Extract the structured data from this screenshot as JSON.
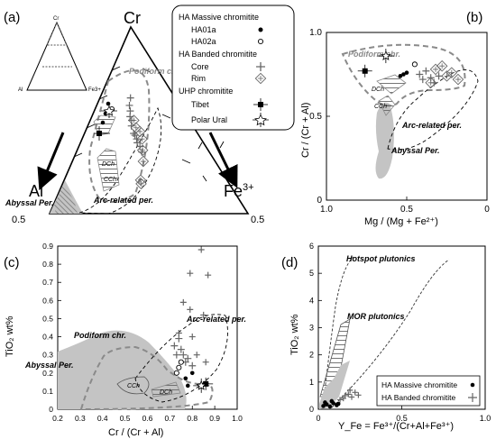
{
  "panel_labels": {
    "a": "(a)",
    "b": "(b)",
    "c": "(c)",
    "d": "(d)"
  },
  "legend": {
    "group_massive": "HA Massive chromitite",
    "item_ha01a": "HA01a",
    "item_ha02a": "HA02a",
    "group_banded": "HA Banded chromitite",
    "item_core": "Core",
    "item_rim": "Rim",
    "group_uhp": "UHP chromitite",
    "item_tibet": "Tibet",
    "item_polar": "Polar Ural"
  },
  "colors": {
    "gray_field": "#c4c4c4",
    "dash": "#8a8a8a",
    "ink": "#000000"
  },
  "chart_data": [
    {
      "type": "ternary",
      "panel": "(a)",
      "vertices": {
        "top": "Cr",
        "left": "Al",
        "right": "Fe3+"
      },
      "right_vertex_main": "Fe",
      "right_vertex_sup": "3+",
      "inset_labels": {
        "top": "Cr",
        "left": "Al",
        "right": "Fe3+"
      },
      "scale_left": "0.5",
      "scale_right": "0.5",
      "field_labels": {
        "podiform": "Podiform chr.",
        "arc": "Arc-related per.",
        "abyssal": "Abyssal Per.",
        "dch": "DCh",
        "cch": "CCh"
      },
      "core_points": [
        [
          0.6,
          0.33
        ],
        [
          0.56,
          0.36
        ],
        [
          0.52,
          0.38
        ],
        [
          0.47,
          0.42
        ],
        [
          0.5,
          0.4
        ],
        [
          0.4,
          0.47
        ],
        [
          0.45,
          0.43
        ],
        [
          0.35,
          0.52
        ],
        [
          0.38,
          0.5
        ],
        [
          0.33,
          0.55
        ],
        [
          0.3,
          0.58
        ],
        [
          0.28,
          0.62
        ]
      ],
      "rim_points": [
        [
          0.7,
          0.18
        ],
        [
          0.65,
          0.28
        ],
        [
          0.6,
          0.34
        ],
        [
          0.5,
          0.44
        ],
        [
          0.45,
          0.46
        ],
        [
          0.4,
          0.5
        ],
        [
          0.55,
          0.4
        ],
        [
          0.72,
          0.16
        ]
      ]
    },
    {
      "type": "scatter",
      "panel": "(b)",
      "xlabel": "Mg / (Mg + Fe²⁺)",
      "ylabel": "Cr / (Cr + Al)",
      "xlim": [
        1.0,
        0.0
      ],
      "ylim": [
        0,
        1.0
      ],
      "x_ticks": [
        "1.0",
        "0.5",
        "0"
      ],
      "y_ticks": [
        "0",
        "0.5",
        "1.0"
      ],
      "field_labels": {
        "podiform": "Podiform chr.",
        "arc": "Arc-related per.",
        "abyssal": "Abyssal Per.",
        "dch": "DCh",
        "cch": "CCh"
      },
      "ha01a": [
        [
          0.52,
          0.75
        ],
        [
          0.5,
          0.76
        ],
        [
          0.54,
          0.74
        ]
      ],
      "ha02a": [
        [
          0.45,
          0.81
        ]
      ],
      "core": [
        [
          0.38,
          0.77
        ],
        [
          0.35,
          0.73
        ],
        [
          0.33,
          0.7
        ],
        [
          0.3,
          0.74
        ],
        [
          0.4,
          0.72
        ],
        [
          0.42,
          0.75
        ]
      ],
      "rim": [
        [
          0.32,
          0.78
        ],
        [
          0.28,
          0.8
        ],
        [
          0.25,
          0.74
        ],
        [
          0.22,
          0.76
        ],
        [
          0.18,
          0.72
        ],
        [
          0.35,
          0.7
        ]
      ],
      "tibet": {
        "x": 0.76,
        "y": 0.77
      },
      "polar_ural": {
        "x": 0.63,
        "y": 0.86
      }
    },
    {
      "type": "scatter",
      "panel": "(c)",
      "xlabel": "Cr / (Cr + Al)",
      "ylabel": "TiO₂ wt%",
      "xlim": [
        0.2,
        1.0
      ],
      "ylim": [
        0,
        0.9
      ],
      "x_ticks": [
        "0.2",
        "0.3",
        "0.4",
        "0.5",
        "0.6",
        "0.7",
        "0.8",
        "0.9",
        "1.0"
      ],
      "y_ticks": [
        "0",
        "0.1",
        "0.2",
        "0.3",
        "0.4",
        "0.5",
        "0.6",
        "0.7",
        "0.8",
        "0.9"
      ],
      "field_labels": {
        "podiform": "Podiform chr.",
        "arc": "Arc-related per.",
        "abyssal": "Abyssal Per.",
        "dch": "DCh",
        "cch": "CCh"
      },
      "ha01a": [
        [
          0.77,
          0.17
        ],
        [
          0.78,
          0.13
        ],
        [
          0.8,
          0.2
        ]
      ],
      "ha02a": [
        [
          0.73,
          0.2
        ],
        [
          0.74,
          0.23
        ],
        [
          0.75,
          0.26
        ]
      ],
      "core": [
        [
          0.72,
          0.35
        ],
        [
          0.74,
          0.39
        ],
        [
          0.75,
          0.33
        ],
        [
          0.76,
          0.3
        ],
        [
          0.78,
          0.28
        ],
        [
          0.73,
          0.3
        ],
        [
          0.77,
          0.26
        ],
        [
          0.8,
          0.24
        ]
      ],
      "rim": [
        [
          0.84,
          0.88
        ],
        [
          0.79,
          0.75
        ],
        [
          0.87,
          0.74
        ],
        [
          0.76,
          0.59
        ],
        [
          0.79,
          0.55
        ],
        [
          0.85,
          0.52
        ],
        [
          0.74,
          0.42
        ],
        [
          0.8,
          0.4
        ],
        [
          0.82,
          0.3
        ],
        [
          0.86,
          0.26
        ]
      ],
      "tibet": {
        "x": 0.86,
        "y": 0.14
      },
      "polar_ural": {
        "x": 0.84,
        "y": 0.13
      }
    },
    {
      "type": "scatter",
      "panel": "(d)",
      "xlabel": "Y_Fe = Fe³⁺/(Cr+Al+Fe³⁺)",
      "ylabel": "TiO₂ wt%",
      "xlim": [
        0,
        1.0
      ],
      "ylim": [
        0,
        6
      ],
      "x_ticks": [
        "0",
        "0.5",
        "1.0"
      ],
      "y_ticks": [
        "0",
        "1",
        "2",
        "3",
        "4",
        "5",
        "6"
      ],
      "field_labels": {
        "hotspot": "Hotspot plutonics",
        "mor": "MOR plutonics"
      },
      "legend_massive": "HA Massive chromitite",
      "legend_banded": "HA Banded chromitite",
      "massive": [
        [
          0.03,
          0.12
        ],
        [
          0.05,
          0.18
        ],
        [
          0.07,
          0.1
        ],
        [
          0.09,
          0.22
        ],
        [
          0.11,
          0.15
        ],
        [
          0.04,
          0.25
        ],
        [
          0.08,
          0.3
        ],
        [
          0.12,
          0.2
        ]
      ],
      "banded": [
        [
          0.13,
          0.35
        ],
        [
          0.16,
          0.5
        ],
        [
          0.18,
          0.55
        ],
        [
          0.2,
          0.45
        ],
        [
          0.22,
          0.62
        ],
        [
          0.15,
          0.4
        ],
        [
          0.19,
          0.7
        ],
        [
          0.24,
          0.52
        ]
      ]
    }
  ]
}
